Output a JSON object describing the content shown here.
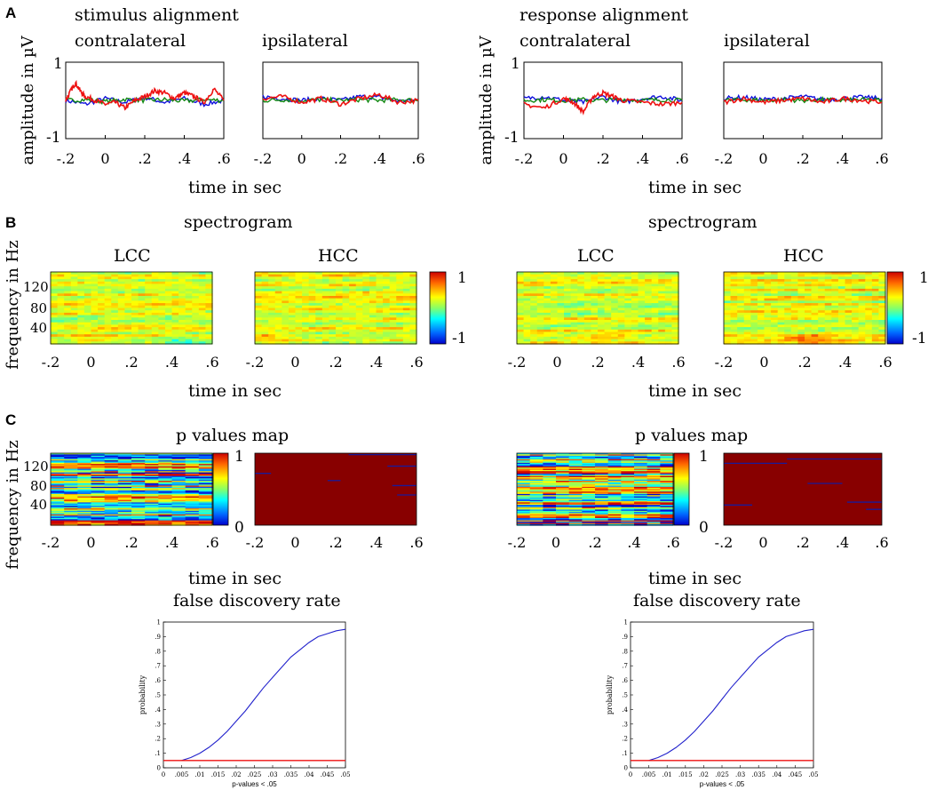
{
  "panel_letters": {
    "a": "A",
    "b": "B",
    "c": "C"
  },
  "sections": {
    "stimulus_alignment": "stimulus alignment",
    "response_alignment": "response alignment"
  },
  "labels": {
    "contralateral": "contralateral",
    "ipsilateral": "ipsilateral",
    "amplitude_ylabel": "amplitude in µV",
    "time_xlabel": "time in sec",
    "spectrogram_title": "spectrogram",
    "frequency_ylabel": "frequency in Hz",
    "lcc": "LCC",
    "hcc": "HCC",
    "pmap_title": "p values map",
    "fdr_title": "false discovery rate"
  },
  "colors": {
    "red": "#ee1111",
    "blue": "#1111dd",
    "green": "#118811",
    "fdr_curve": "#2222cc",
    "fdr_threshold": "#ee1111",
    "map_dark_red": "#880000"
  },
  "chart_data": [
    {
      "type": "line",
      "title": "stimulus alignment - contralateral",
      "xlabel": "time in sec",
      "ylabel": "amplitude in µV",
      "xlim": [
        -0.2,
        0.6
      ],
      "ylim": [
        -1,
        1
      ],
      "xticks": [
        "-.2",
        "0",
        ".2",
        ".4",
        ".6"
      ],
      "yticks": [
        "1",
        "-1"
      ],
      "series": [
        {
          "name": "red",
          "color": "#ee1111",
          "x": [
            -0.2,
            -0.17,
            -0.15,
            -0.12,
            -0.1,
            -0.05,
            0,
            0.05,
            0.1,
            0.15,
            0.2,
            0.25,
            0.3,
            0.35,
            0.4,
            0.45,
            0.5,
            0.55,
            0.6
          ],
          "values": [
            0,
            0.3,
            0.45,
            0.2,
            0.1,
            0,
            -0.1,
            -0.05,
            -0.2,
            0,
            0.1,
            0.25,
            0.2,
            0.05,
            0.2,
            0.1,
            -0.05,
            0.3,
            0
          ]
        },
        {
          "name": "blue",
          "color": "#1111dd",
          "x": [
            -0.2,
            -0.1,
            0,
            0.1,
            0.2,
            0.3,
            0.4,
            0.5,
            0.6
          ],
          "values": [
            0,
            -0.1,
            0.05,
            -0.05,
            0.08,
            -0.05,
            0.05,
            -0.1,
            0
          ]
        },
        {
          "name": "green",
          "color": "#118811",
          "x": [
            -0.2,
            -0.1,
            0,
            0.1,
            0.2,
            0.3,
            0.4,
            0.5,
            0.6
          ],
          "values": [
            0,
            0.02,
            -0.03,
            0.03,
            0,
            0.02,
            -0.02,
            0.02,
            0
          ]
        }
      ]
    },
    {
      "type": "line",
      "title": "stimulus alignment - ipsilateral",
      "xlabel": "time in sec",
      "xlim": [
        -0.2,
        0.6
      ],
      "ylim": [
        -1,
        1
      ],
      "xticks": [
        "-.2",
        "0",
        ".2",
        ".4",
        ".6"
      ],
      "series": [
        {
          "name": "red",
          "color": "#ee1111",
          "x": [
            -0.2,
            -0.1,
            0,
            0.1,
            0.2,
            0.3,
            0.4,
            0.5,
            0.6
          ],
          "values": [
            0.05,
            0.1,
            -0.05,
            0.05,
            -0.1,
            0.05,
            0.15,
            -0.05,
            0
          ]
        },
        {
          "name": "blue",
          "color": "#1111dd",
          "x": [
            -0.2,
            -0.1,
            0,
            0.1,
            0.2,
            0.3,
            0.4,
            0.5,
            0.6
          ],
          "values": [
            0.1,
            0.05,
            0,
            0.05,
            0,
            0.1,
            0.08,
            -0.02,
            0
          ]
        },
        {
          "name": "green",
          "color": "#118811",
          "x": [
            -0.2,
            -0.1,
            0,
            0.1,
            0.2,
            0.3,
            0.4,
            0.5,
            0.6
          ],
          "values": [
            0,
            0.02,
            0,
            0.02,
            0,
            0.02,
            0,
            0.02,
            0
          ]
        }
      ]
    },
    {
      "type": "line",
      "title": "response alignment - contralateral",
      "xlabel": "time in sec",
      "ylabel": "amplitude in µV",
      "xlim": [
        -0.2,
        0.6
      ],
      "ylim": [
        -1,
        1
      ],
      "xticks": [
        "-.2",
        "0",
        ".2",
        ".4",
        ".6"
      ],
      "yticks": [
        "1",
        "-1"
      ],
      "series": [
        {
          "name": "red",
          "color": "#ee1111",
          "x": [
            -0.2,
            -0.1,
            0,
            0.05,
            0.1,
            0.15,
            0.2,
            0.25,
            0.3,
            0.4,
            0.5,
            0.6
          ],
          "values": [
            -0.1,
            -0.2,
            0.05,
            -0.05,
            -0.3,
            0.1,
            0.2,
            0.1,
            0,
            -0.05,
            -0.1,
            -0.05
          ]
        },
        {
          "name": "blue",
          "color": "#1111dd",
          "x": [
            -0.2,
            -0.1,
            0,
            0.1,
            0.2,
            0.3,
            0.4,
            0.5,
            0.6
          ],
          "values": [
            0.05,
            0.1,
            0,
            -0.05,
            0.1,
            -0.05,
            0.05,
            0.1,
            0
          ]
        },
        {
          "name": "green",
          "color": "#118811",
          "x": [
            -0.2,
            -0.1,
            0,
            0.1,
            0.2,
            0.3,
            0.4,
            0.5,
            0.6
          ],
          "values": [
            0,
            0.02,
            0,
            0.02,
            0,
            0.03,
            0,
            0.02,
            0
          ]
        }
      ]
    },
    {
      "type": "line",
      "title": "response alignment - ipsilateral",
      "xlabel": "time in sec",
      "xlim": [
        -0.2,
        0.6
      ],
      "ylim": [
        -1,
        1
      ],
      "xticks": [
        "-.2",
        "0",
        ".2",
        ".4",
        ".6"
      ],
      "series": [
        {
          "name": "red",
          "color": "#ee1111",
          "x": [
            -0.2,
            -0.1,
            0,
            0.1,
            0.2,
            0.3,
            0.4,
            0.5,
            0.6
          ],
          "values": [
            -0.05,
            0.05,
            -0.05,
            0,
            0.05,
            -0.05,
            0.05,
            0,
            -0.05
          ]
        },
        {
          "name": "blue",
          "color": "#1111dd",
          "x": [
            -0.2,
            -0.1,
            0,
            0.1,
            0.2,
            0.3,
            0.4,
            0.5,
            0.6
          ],
          "values": [
            0.05,
            0.08,
            0.02,
            0.05,
            0.1,
            0.02,
            0.05,
            0.08,
            0.05
          ]
        },
        {
          "name": "green",
          "color": "#118811",
          "x": [
            -0.2,
            -0.1,
            0,
            0.1,
            0.2,
            0.3,
            0.4,
            0.5,
            0.6
          ],
          "values": [
            0,
            0.02,
            0,
            0.02,
            0,
            0.02,
            0,
            0.02,
            0
          ]
        }
      ]
    },
    {
      "type": "heatmap",
      "title": "spectrogram - stimulus alignment",
      "xlabel": "time in sec",
      "ylabel": "frequency in Hz",
      "panels": [
        "LCC",
        "HCC"
      ],
      "xticks": [
        "-.2",
        "0",
        ".2",
        ".4",
        ".6"
      ],
      "yticks": [
        "120",
        "80",
        "40"
      ],
      "colorbar": {
        "min": -1,
        "max": 1,
        "ticks": [
          "1",
          "-1"
        ]
      }
    },
    {
      "type": "heatmap",
      "title": "spectrogram - response alignment",
      "xlabel": "time in sec",
      "panels": [
        "LCC",
        "HCC"
      ],
      "xticks": [
        "-.2",
        "0",
        ".2",
        ".4",
        ".6"
      ],
      "colorbar": {
        "min": -1,
        "max": 1,
        "ticks": [
          "1",
          "-1"
        ]
      }
    },
    {
      "type": "heatmap",
      "title": "p values map - stimulus alignment",
      "xlabel": "time in sec",
      "ylabel": "frequency in Hz",
      "xticks": [
        "-.2",
        "0",
        ".2",
        ".4",
        ".6"
      ],
      "yticks": [
        "120",
        "80",
        "40"
      ],
      "colorbar": {
        "min": 0,
        "max": 1,
        "ticks": [
          "1",
          "0"
        ]
      }
    },
    {
      "type": "heatmap",
      "title": "p values map - response alignment",
      "xlabel": "time in sec",
      "xticks": [
        "-.2",
        "0",
        ".2",
        ".4",
        ".6"
      ],
      "colorbar": {
        "min": 0,
        "max": 1,
        "ticks": [
          "1",
          "0"
        ]
      }
    },
    {
      "type": "line",
      "title": "false discovery rate - stimulus alignment",
      "xlabel": "p-values < .05",
      "ylabel": "probability",
      "xlim": [
        0,
        0.05
      ],
      "ylim": [
        0,
        1
      ],
      "xticks": [
        "0",
        ".005",
        ".01",
        ".015",
        ".02",
        ".025",
        ".03",
        ".035",
        ".04",
        ".045",
        ".05"
      ],
      "yticks": [
        "0",
        ".1",
        ".2",
        ".3",
        ".4",
        ".5",
        ".6",
        ".7",
        ".8",
        ".9",
        "1"
      ],
      "series": [
        {
          "name": "fdr",
          "color": "#2222cc",
          "x": [
            0.005,
            0.0075,
            0.01,
            0.0125,
            0.015,
            0.0175,
            0.02,
            0.0225,
            0.025,
            0.0275,
            0.03,
            0.0325,
            0.035,
            0.0375,
            0.04,
            0.0425,
            0.045,
            0.0475,
            0.05
          ],
          "values": [
            0.05,
            0.07,
            0.1,
            0.14,
            0.19,
            0.25,
            0.32,
            0.39,
            0.47,
            0.55,
            0.62,
            0.69,
            0.76,
            0.81,
            0.86,
            0.9,
            0.92,
            0.94,
            0.95
          ]
        },
        {
          "name": "threshold",
          "color": "#ee1111",
          "x": [
            0,
            0.05
          ],
          "values": [
            0.05,
            0.05
          ]
        }
      ]
    },
    {
      "type": "line",
      "title": "false discovery rate - response alignment",
      "xlabel": "p-values < .05",
      "ylabel": "probability",
      "xlim": [
        0,
        0.05
      ],
      "ylim": [
        0,
        1
      ],
      "xticks": [
        "0",
        ".005",
        ".01",
        ".015",
        ".02",
        ".025",
        ".03",
        ".035",
        ".04",
        ".045",
        ".05"
      ],
      "yticks": [
        "0",
        ".1",
        ".2",
        ".3",
        ".4",
        ".5",
        ".6",
        ".7",
        ".8",
        ".9",
        "1"
      ],
      "series": [
        {
          "name": "fdr",
          "color": "#2222cc",
          "x": [
            0.005,
            0.0075,
            0.01,
            0.0125,
            0.015,
            0.0175,
            0.02,
            0.0225,
            0.025,
            0.0275,
            0.03,
            0.0325,
            0.035,
            0.0375,
            0.04,
            0.0425,
            0.045,
            0.0475,
            0.05
          ],
          "values": [
            0.05,
            0.07,
            0.1,
            0.14,
            0.19,
            0.25,
            0.32,
            0.39,
            0.47,
            0.55,
            0.62,
            0.69,
            0.76,
            0.81,
            0.86,
            0.9,
            0.92,
            0.94,
            0.95
          ]
        },
        {
          "name": "threshold",
          "color": "#ee1111",
          "x": [
            0,
            0.05
          ],
          "values": [
            0.05,
            0.05
          ]
        }
      ]
    }
  ]
}
